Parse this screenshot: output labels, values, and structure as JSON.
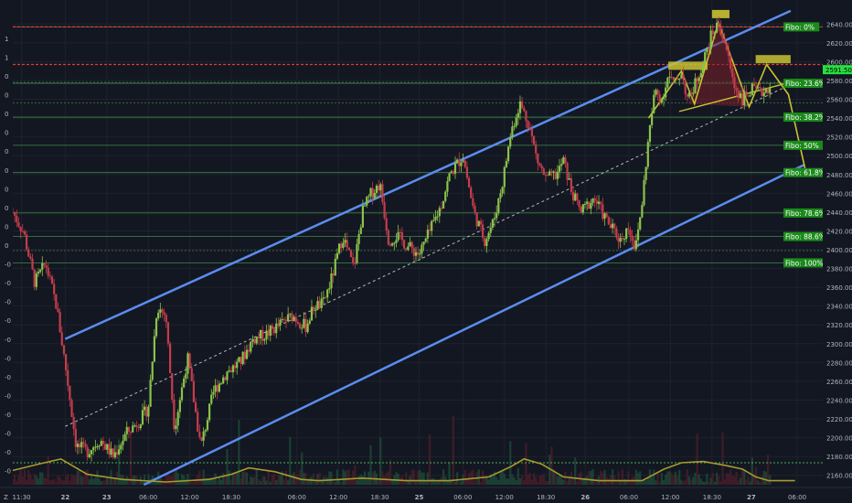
{
  "chart_data": {
    "type": "line",
    "title": "",
    "xlabel": "",
    "ylabel": "",
    "ylim": [
      2150,
      2650
    ],
    "xlim": [
      0,
      17.5
    ],
    "price_ticks": [
      "2640.00",
      "2620.00",
      "2600.00",
      "2580.00",
      "2560.00",
      "2540.00",
      "2520.00",
      "2500.00",
      "2480.00",
      "2460.00",
      "2440.00",
      "2420.00",
      "2400.00",
      "2380.00",
      "2360.00",
      "2340.00",
      "2320.00",
      "2300.00",
      "2280.00",
      "2260.00",
      "2240.00",
      "2220.00",
      "2200.00",
      "2180.00",
      "2160.00"
    ],
    "time_ticks": [
      {
        "x": 0.2,
        "label": "11:30"
      },
      {
        "x": 1.2,
        "label": "22"
      },
      {
        "x": 2.15,
        "label": "23"
      },
      {
        "x": 3.1,
        "label": "06:00"
      },
      {
        "x": 4.05,
        "label": "12:00"
      },
      {
        "x": 5.0,
        "label": "18:30"
      },
      {
        "x": 6.5,
        "label": "06:00"
      },
      {
        "x": 7.45,
        "label": "12:00"
      },
      {
        "x": 8.4,
        "label": "18:30"
      },
      {
        "x": 9.3,
        "label": "25"
      },
      {
        "x": 10.3,
        "label": "06:00"
      },
      {
        "x": 11.25,
        "label": "12:00"
      },
      {
        "x": 12.2,
        "label": "18:30"
      },
      {
        "x": 13.1,
        "label": "26"
      },
      {
        "x": 14.1,
        "label": "06:00"
      },
      {
        "x": 15.05,
        "label": "12:00"
      },
      {
        "x": 16.0,
        "label": "18:30"
      },
      {
        "x": 16.9,
        "label": "27"
      },
      {
        "x": 17.95,
        "label": "06:00"
      }
    ],
    "left_axis_labels": [
      "1",
      "1",
      "0",
      "0",
      "0",
      "0",
      "0",
      "0",
      "0",
      "0",
      "0",
      "0",
      "-0",
      "-0",
      "-0",
      "-0",
      "-0",
      "-0",
      "-0",
      "-0",
      "-0",
      "-0",
      "-0",
      "-0"
    ],
    "bottom_left_label": "Z",
    "current_price": "2591.50",
    "fibo_levels": [
      {
        "label": "Fibo: 0%",
        "price": 2637
      },
      {
        "label": "Fibo: 23.6%",
        "price": 2577
      },
      {
        "label": "Fibo: 38.2%",
        "price": 2541
      },
      {
        "label": "Fibo: 50%",
        "price": 2511
      },
      {
        "label": "Fibo: 61.8%",
        "price": 2482
      },
      {
        "label": "Fibo: 78.6%",
        "price": 2439
      },
      {
        "label": "Fibo: 88.6%",
        "price": 2414
      },
      {
        "label": "Fibo: 100%",
        "price": 2386
      }
    ],
    "resistance_levels": [
      2637,
      2597
    ],
    "minor_levels": [
      2399,
      2556,
      2578
    ],
    "channel": {
      "upper": [
        [
          1.2,
          2305
        ],
        [
          17.8,
          2654
        ]
      ],
      "lower": [
        [
          3.0,
          2150
        ],
        [
          18.1,
          2490
        ]
      ],
      "mid": [
        [
          1.2,
          2212
        ],
        [
          18.0,
          2580
        ]
      ]
    },
    "price_series": [
      [
        0.0,
        2440
      ],
      [
        0.25,
        2418
      ],
      [
        0.5,
        2365
      ],
      [
        0.75,
        2385
      ],
      [
        1.0,
        2340
      ],
      [
        1.2,
        2278
      ],
      [
        1.45,
        2192
      ],
      [
        1.7,
        2185
      ],
      [
        2.0,
        2198
      ],
      [
        2.3,
        2180
      ],
      [
        2.6,
        2205
      ],
      [
        2.9,
        2218
      ],
      [
        3.1,
        2232
      ],
      [
        3.3,
        2340
      ],
      [
        3.5,
        2330
      ],
      [
        3.7,
        2210
      ],
      [
        4.0,
        2285
      ],
      [
        4.3,
        2190
      ],
      [
        4.6,
        2250
      ],
      [
        4.9,
        2270
      ],
      [
        5.2,
        2280
      ],
      [
        5.5,
        2305
      ],
      [
        5.8,
        2310
      ],
      [
        6.1,
        2320
      ],
      [
        6.4,
        2330
      ],
      [
        6.7,
        2318
      ],
      [
        6.9,
        2340
      ],
      [
        7.1,
        2342
      ],
      [
        7.3,
        2370
      ],
      [
        7.55,
        2415
      ],
      [
        7.8,
        2380
      ],
      [
        8.0,
        2440
      ],
      [
        8.2,
        2460
      ],
      [
        8.4,
        2470
      ],
      [
        8.6,
        2410
      ],
      [
        8.8,
        2415
      ],
      [
        9.0,
        2405
      ],
      [
        9.3,
        2395
      ],
      [
        9.55,
        2420
      ],
      [
        9.8,
        2447
      ],
      [
        10.0,
        2480
      ],
      [
        10.3,
        2500
      ],
      [
        10.55,
        2440
      ],
      [
        10.8,
        2410
      ],
      [
        11.0,
        2430
      ],
      [
        11.2,
        2470
      ],
      [
        11.4,
        2525
      ],
      [
        11.6,
        2556
      ],
      [
        11.8,
        2535
      ],
      [
        12.0,
        2495
      ],
      [
        12.2,
        2475
      ],
      [
        12.45,
        2480
      ],
      [
        12.6,
        2495
      ],
      [
        12.8,
        2460
      ],
      [
        13.0,
        2440
      ],
      [
        13.3,
        2455
      ],
      [
        13.6,
        2430
      ],
      [
        13.9,
        2410
      ],
      [
        14.1,
        2425
      ],
      [
        14.25,
        2400
      ],
      [
        14.4,
        2450
      ],
      [
        14.55,
        2520
      ],
      [
        14.7,
        2570
      ],
      [
        14.85,
        2560
      ],
      [
        15.0,
        2585
      ],
      [
        15.15,
        2575
      ],
      [
        15.3,
        2590
      ],
      [
        15.45,
        2558
      ],
      [
        15.6,
        2575
      ],
      [
        15.8,
        2600
      ],
      [
        16.0,
        2630
      ],
      [
        16.15,
        2640
      ],
      [
        16.3,
        2620
      ],
      [
        16.5,
        2575
      ],
      [
        16.7,
        2560
      ],
      [
        16.9,
        2570
      ],
      [
        17.1,
        2566
      ],
      [
        17.35,
        2575
      ]
    ],
    "pattern": {
      "left_shoulder": [
        2595,
        2590
      ],
      "head": [
        2647,
        2647
      ],
      "right_shoulder": [
        2600,
        2600
      ],
      "neckline": [
        [
          15.3,
          2550
        ],
        [
          17.7,
          2570
        ]
      ]
    },
    "indicator": [
      [
        0.0,
        0.45
      ],
      [
        0.6,
        0.7
      ],
      [
        1.1,
        0.9
      ],
      [
        1.7,
        0.3
      ],
      [
        2.5,
        0.1
      ],
      [
        3.5,
        0.0
      ],
      [
        4.5,
        0.1
      ],
      [
        5.0,
        0.3
      ],
      [
        5.4,
        0.55
      ],
      [
        6.0,
        0.4
      ],
      [
        6.6,
        0.1
      ],
      [
        7.0,
        0.05
      ],
      [
        8.0,
        0.15
      ],
      [
        9.0,
        0.05
      ],
      [
        10.0,
        0.05
      ],
      [
        10.9,
        0.2
      ],
      [
        11.4,
        0.6
      ],
      [
        11.7,
        0.9
      ],
      [
        12.1,
        0.7
      ],
      [
        12.6,
        0.2
      ],
      [
        13.4,
        0.05
      ],
      [
        14.4,
        0.05
      ],
      [
        14.9,
        0.5
      ],
      [
        15.3,
        0.75
      ],
      [
        15.8,
        0.8
      ],
      [
        16.3,
        0.65
      ],
      [
        16.7,
        0.5
      ],
      [
        17.0,
        0.2
      ],
      [
        17.3,
        0.05
      ],
      [
        17.9,
        0.05
      ]
    ],
    "colors": {
      "background": "#131722",
      "grid": "#1e222d",
      "channel": "#5b8def",
      "resistance": "#e53935",
      "fibo_line": "#4caf50",
      "fibo_label_bg": "#1b8a1b",
      "bull": "#8bc34a",
      "bear": "#c43d4b",
      "pattern": "#c9c233",
      "pattern_fill": "#7a1f29",
      "indicator": "#a89a2e",
      "price_tag": "#27e03f",
      "axis_text": "#b2b5be",
      "midline": "#cfd2da"
    }
  }
}
